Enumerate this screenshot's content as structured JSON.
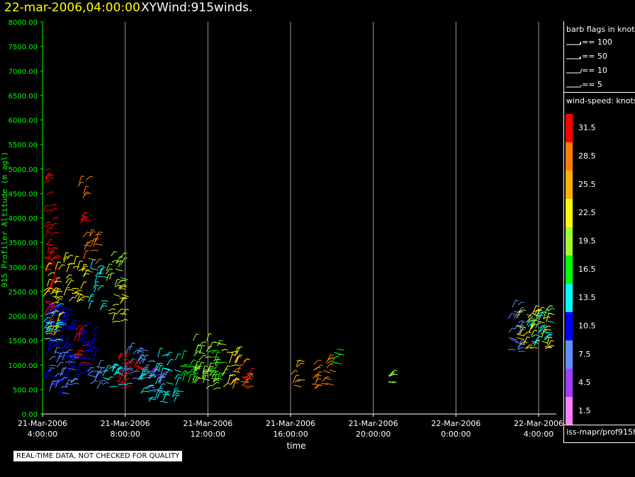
{
  "title": {
    "date": "22-mar-2006,04:00:00",
    "name": "XYWind:915winds."
  },
  "warning_text": "REAL-TIME DATA, NOT CHECKED FOR QUALITY",
  "legend": {
    "barb_header": "barb flags in knots",
    "barb_items": [
      "== 100",
      "== 50",
      "== 10",
      "== 5"
    ],
    "color_header": "wind-speed: knots",
    "color_labels": [
      "31.5",
      "28.5",
      "25.5",
      "22.5",
      "19.5",
      "16.5",
      "13.5",
      "10.5",
      "7.5",
      "4.5",
      "1.5"
    ],
    "colors": [
      "#ff0000",
      "#ff8000",
      "#ffb000",
      "#ffff00",
      "#a0ff30",
      "#00ff00",
      "#00ffff",
      "#0000ff",
      "#6090ff",
      "#a040ff",
      "#ff80ff"
    ],
    "source": "iss-mapr/prof915h"
  },
  "chart_data": {
    "type": "scatter",
    "title": "22-mar-2006,04:00:00  XYWind:915winds.",
    "xlabel": "time",
    "ylabel": "915 Profiler Altitude (m agl)",
    "ylim": [
      0,
      8000
    ],
    "yticks": [
      "0.00",
      "500.00",
      "1000.00",
      "1500.00",
      "2000.00",
      "2500.00",
      "3000.00",
      "3500.00",
      "4000.00",
      "4500.00",
      "5000.00",
      "5500.00",
      "6000.00",
      "6500.00",
      "7000.00",
      "7500.00",
      "8000.00"
    ],
    "xlim_hours": [
      4,
      28
    ],
    "xticks": [
      {
        "hour": 4,
        "date": "21-Mar-2006",
        "time": "4:00:00"
      },
      {
        "hour": 8,
        "date": "21-Mar-2006",
        "time": "8:00:00"
      },
      {
        "hour": 12,
        "date": "21-Mar-2006",
        "time": "12:00:00"
      },
      {
        "hour": 16,
        "date": "21-Mar-2006",
        "time": "16:00:00"
      },
      {
        "hour": 20,
        "date": "21-Mar-2006",
        "time": "20:00:00"
      },
      {
        "hour": 24,
        "date": "22-Mar-2006",
        "time": "0:00:00"
      },
      {
        "hour": 28,
        "date": "22-Mar-2006",
        "time": "4:00:00"
      }
    ],
    "grid": true,
    "legend_position": "right",
    "clusters": [
      {
        "h0": 4.0,
        "h1": 4.6,
        "a0": 1700,
        "a1": 4500,
        "speed": 30
      },
      {
        "h0": 4.0,
        "h1": 4.8,
        "a0": 1500,
        "a1": 3000,
        "speed": 22
      },
      {
        "h0": 4.0,
        "h1": 5.2,
        "a0": 400,
        "a1": 2200,
        "speed": 11
      },
      {
        "h0": 4.0,
        "h1": 4.7,
        "a0": 1500,
        "a1": 2300,
        "speed": 14
      },
      {
        "h0": 4.3,
        "h1": 5.5,
        "a0": 400,
        "a1": 1300,
        "speed": 6
      },
      {
        "h0": 5.0,
        "h1": 6.0,
        "a0": 2200,
        "a1": 3200,
        "speed": 22
      },
      {
        "h0": 5.2,
        "h1": 6.5,
        "a0": 700,
        "a1": 1800,
        "speed": 10
      },
      {
        "h0": 5.5,
        "h1": 6.0,
        "a0": 1000,
        "a1": 1800,
        "speed": 30
      },
      {
        "h0": 5.9,
        "h1": 6.6,
        "a0": 2900,
        "a1": 3700,
        "speed": 28
      },
      {
        "h0": 6.0,
        "h1": 7.0,
        "a0": 500,
        "a1": 1000,
        "speed": 7
      },
      {
        "h0": 6.2,
        "h1": 6.9,
        "a0": 2100,
        "a1": 3000,
        "speed": 12
      },
      {
        "h0": 7.0,
        "h1": 7.8,
        "a0": 2600,
        "a1": 3300,
        "speed": 19
      },
      {
        "h0": 7.1,
        "h1": 7.9,
        "a0": 1800,
        "a1": 2600,
        "speed": 22
      },
      {
        "h0": 6.8,
        "h1": 8.0,
        "a0": 500,
        "a1": 1000,
        "speed": 12
      },
      {
        "h0": 7.5,
        "h1": 8.6,
        "a0": 500,
        "a1": 1200,
        "speed": 30
      },
      {
        "h0": 7.8,
        "h1": 9.0,
        "a0": 700,
        "a1": 1300,
        "speed": 6
      },
      {
        "h0": 8.6,
        "h1": 10.5,
        "a0": 200,
        "a1": 1200,
        "speed": 13
      },
      {
        "h0": 9.0,
        "h1": 9.8,
        "a0": 500,
        "a1": 900,
        "speed": 4
      },
      {
        "h0": 10.6,
        "h1": 11.4,
        "a0": 600,
        "a1": 1300,
        "speed": 16
      },
      {
        "h0": 11.2,
        "h1": 12.6,
        "a0": 500,
        "a1": 1500,
        "speed": 19
      },
      {
        "h0": 12.0,
        "h1": 12.7,
        "a0": 700,
        "a1": 1300,
        "speed": 16
      },
      {
        "h0": 12.6,
        "h1": 13.4,
        "a0": 500,
        "a1": 1300,
        "speed": 22
      },
      {
        "h0": 13.1,
        "h1": 13.9,
        "a0": 500,
        "a1": 1100,
        "speed": 28
      },
      {
        "h0": 13.6,
        "h1": 14.0,
        "a0": 500,
        "a1": 800,
        "speed": 31
      },
      {
        "h0": 16.0,
        "h1": 16.4,
        "a0": 500,
        "a1": 1200,
        "speed": 25
      },
      {
        "h0": 17.0,
        "h1": 17.9,
        "a0": 500,
        "a1": 1300,
        "speed": 29
      },
      {
        "h0": 17.9,
        "h1": 18.3,
        "a0": 900,
        "a1": 1400,
        "speed": 17
      },
      {
        "h0": 20.7,
        "h1": 20.9,
        "a0": 600,
        "a1": 800,
        "speed": 19
      },
      {
        "h0": 26.5,
        "h1": 27.1,
        "a0": 1200,
        "a1": 2400,
        "speed": 7
      },
      {
        "h0": 26.9,
        "h1": 28.5,
        "a0": 1300,
        "a1": 2200,
        "speed": 23
      },
      {
        "h0": 27.4,
        "h1": 28.5,
        "a0": 1400,
        "a1": 2100,
        "speed": 13
      },
      {
        "h0": 4.1,
        "h1": 4.3,
        "a0": 4600,
        "a1": 5000,
        "speed": 31
      },
      {
        "h0": 5.7,
        "h1": 6.1,
        "a0": 4400,
        "a1": 4900,
        "speed": 28
      },
      {
        "h0": 5.8,
        "h1": 6.0,
        "a0": 3900,
        "a1": 4100,
        "speed": 31
      }
    ]
  }
}
